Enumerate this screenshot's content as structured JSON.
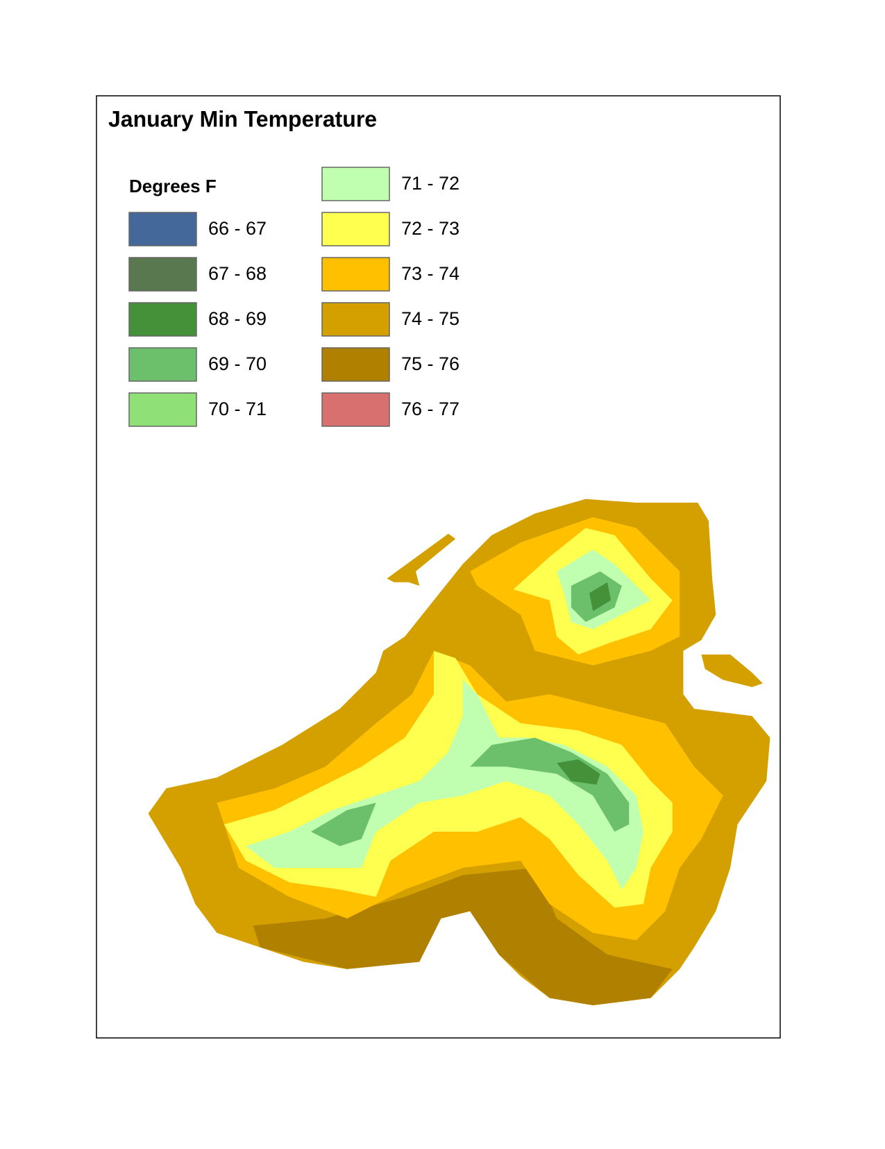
{
  "title": "January Min Temperature",
  "legend": {
    "title": "Degrees F",
    "items": [
      {
        "label": "66 - 67",
        "color": "#44689a"
      },
      {
        "label": "67 - 68",
        "color": "#5a7850"
      },
      {
        "label": "68 - 69",
        "color": "#44913a"
      },
      {
        "label": "69 - 70",
        "color": "#6cc06c"
      },
      {
        "label": "70 - 71",
        "color": "#90e078"
      },
      {
        "label": "71 - 72",
        "color": "#c0ffb0"
      },
      {
        "label": "72 - 73",
        "color": "#ffff50"
      },
      {
        "label": "73 - 74",
        "color": "#ffc000"
      },
      {
        "label": "74 - 75",
        "color": "#d4a000"
      },
      {
        "label": "75 - 76",
        "color": "#b08000"
      },
      {
        "label": "76 - 77",
        "color": "#d87070"
      }
    ]
  }
}
